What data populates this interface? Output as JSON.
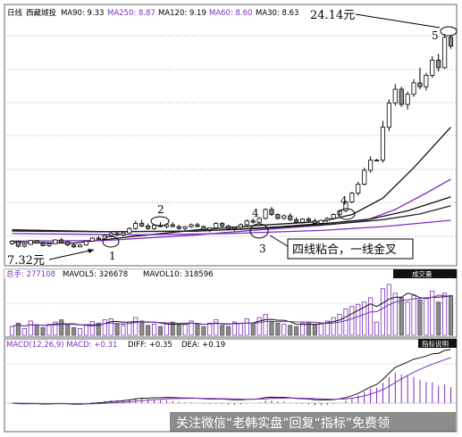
{
  "chart_data": [
    {
      "type": "candlestick",
      "panel": "price",
      "period_label": "日线",
      "stock_name": "西藏城投",
      "moving_averages": [
        {
          "label": "MA90",
          "value": "9.33",
          "color": "#000000"
        },
        {
          "label": "MA250",
          "value": "8.87",
          "color": "#7b2fbf"
        },
        {
          "label": "MA120",
          "value": "9.19",
          "color": "#000000"
        },
        {
          "label": "MA60",
          "value": "8.60",
          "color": "#7b2fbf"
        },
        {
          "label": "MA30",
          "value": "8.63",
          "color": "#000000"
        }
      ],
      "price_range": [
        6.0,
        26.0
      ],
      "grid": true,
      "candles": [
        [
          7.6,
          7.9,
          7.5,
          7.8
        ],
        [
          7.8,
          7.85,
          7.3,
          7.4
        ],
        [
          7.4,
          7.6,
          7.3,
          7.55
        ],
        [
          7.55,
          7.9,
          7.5,
          7.85
        ],
        [
          7.85,
          7.9,
          7.6,
          7.65
        ],
        [
          7.65,
          7.75,
          7.4,
          7.45
        ],
        [
          7.45,
          7.7,
          7.35,
          7.6
        ],
        [
          7.6,
          7.95,
          7.55,
          7.9
        ],
        [
          7.9,
          8.05,
          7.7,
          7.75
        ],
        [
          7.75,
          7.8,
          7.4,
          7.5
        ],
        [
          7.5,
          7.6,
          7.25,
          7.35
        ],
        [
          7.35,
          7.55,
          7.32,
          7.5
        ],
        [
          7.5,
          7.85,
          7.45,
          7.8
        ],
        [
          7.8,
          8.1,
          7.75,
          8.05
        ],
        [
          8.05,
          8.2,
          7.9,
          7.95
        ],
        [
          7.95,
          8.3,
          7.9,
          8.25
        ],
        [
          8.25,
          8.5,
          8.1,
          8.4
        ],
        [
          8.4,
          8.6,
          8.2,
          8.3
        ],
        [
          8.3,
          8.5,
          8.2,
          8.45
        ],
        [
          8.45,
          8.9,
          8.4,
          8.8
        ],
        [
          8.8,
          9.4,
          8.7,
          9.2
        ],
        [
          9.2,
          9.5,
          8.9,
          9.0
        ],
        [
          9.0,
          9.2,
          8.7,
          8.8
        ],
        [
          8.8,
          9.1,
          8.7,
          9.05
        ],
        [
          9.05,
          9.3,
          8.9,
          8.95
        ],
        [
          8.95,
          9.2,
          8.8,
          9.1
        ],
        [
          9.1,
          9.3,
          8.9,
          8.95
        ],
        [
          8.95,
          9.1,
          8.7,
          8.8
        ],
        [
          8.8,
          9.0,
          8.6,
          8.95
        ],
        [
          8.95,
          9.2,
          8.85,
          9.1
        ],
        [
          9.1,
          9.25,
          8.9,
          8.95
        ],
        [
          8.95,
          9.05,
          8.6,
          8.7
        ],
        [
          8.7,
          8.9,
          8.5,
          8.85
        ],
        [
          8.85,
          9.3,
          8.8,
          9.2
        ],
        [
          9.2,
          9.3,
          8.9,
          9.0
        ],
        [
          9.0,
          9.1,
          8.7,
          8.8
        ],
        [
          8.8,
          8.95,
          8.6,
          8.9
        ],
        [
          8.9,
          9.2,
          8.85,
          9.1
        ],
        [
          9.1,
          9.5,
          9.0,
          9.4
        ],
        [
          9.4,
          9.6,
          9.2,
          9.3
        ],
        [
          9.3,
          9.7,
          9.2,
          9.6
        ],
        [
          9.6,
          10.4,
          9.5,
          10.3
        ],
        [
          10.3,
          10.5,
          9.8,
          9.9
        ],
        [
          9.9,
          10.0,
          9.5,
          9.6
        ],
        [
          9.6,
          9.9,
          9.5,
          9.8
        ],
        [
          9.8,
          10.0,
          9.4,
          9.5
        ],
        [
          9.5,
          9.7,
          9.2,
          9.3
        ],
        [
          9.3,
          9.6,
          9.2,
          9.55
        ],
        [
          9.55,
          9.7,
          9.3,
          9.4
        ],
        [
          9.4,
          9.6,
          9.1,
          9.2
        ],
        [
          9.2,
          9.5,
          9.1,
          9.45
        ],
        [
          9.45,
          9.7,
          9.3,
          9.6
        ],
        [
          9.6,
          10.0,
          9.5,
          9.9
        ],
        [
          9.9,
          10.3,
          9.8,
          10.2
        ],
        [
          10.2,
          11.0,
          10.1,
          10.9
        ],
        [
          10.9,
          11.7,
          10.8,
          11.6
        ],
        [
          11.6,
          12.5,
          11.4,
          12.3
        ],
        [
          12.3,
          13.6,
          12.2,
          13.4
        ],
        [
          13.4,
          14.5,
          13.2,
          14.2
        ],
        [
          14.2,
          14.3,
          14.1,
          14.2
        ],
        [
          14.2,
          17.3,
          14.0,
          16.8
        ],
        [
          16.8,
          19.0,
          16.5,
          18.7
        ],
        [
          18.7,
          20.2,
          18.5,
          19.8
        ],
        [
          19.8,
          20.0,
          18.4,
          18.6
        ],
        [
          18.6,
          19.6,
          18.2,
          19.4
        ],
        [
          19.4,
          20.6,
          19.2,
          20.3
        ],
        [
          20.3,
          21.5,
          19.8,
          20.0
        ],
        [
          20.0,
          21.1,
          19.7,
          20.9
        ],
        [
          20.9,
          22.4,
          20.7,
          22.1
        ],
        [
          22.1,
          22.6,
          21.2,
          21.5
        ],
        [
          21.5,
          24.14,
          21.4,
          23.9
        ],
        [
          23.9,
          24.1,
          23.0,
          23.2
        ]
      ],
      "ma_lines": [
        {
          "name": "MA30",
          "color": "#111111",
          "values": [
            [
              0,
              7.7
            ],
            [
              10,
              7.65
            ],
            [
              20,
              8.2
            ],
            [
              30,
              8.7
            ],
            [
              40,
              9.05
            ],
            [
              50,
              9.35
            ],
            [
              55,
              9.9
            ],
            [
              60,
              11.2
            ],
            [
              65,
              13.6
            ],
            [
              71,
              16.8
            ]
          ]
        },
        {
          "name": "MA60",
          "color": "#7b2fbf",
          "values": [
            [
              0,
              7.8
            ],
            [
              15,
              7.85
            ],
            [
              30,
              8.3
            ],
            [
              40,
              8.7
            ],
            [
              50,
              9.05
            ],
            [
              57,
              9.4
            ],
            [
              62,
              10.3
            ],
            [
              67,
              11.6
            ],
            [
              71,
              12.7
            ]
          ]
        },
        {
          "name": "MA90",
          "color": "#111111",
          "values": [
            [
              0,
              8.7
            ],
            [
              15,
              8.55
            ],
            [
              30,
              8.6
            ],
            [
              42,
              8.9
            ],
            [
              52,
              9.25
            ],
            [
              58,
              9.55
            ],
            [
              64,
              10.2
            ],
            [
              71,
              11.3
            ]
          ]
        },
        {
          "name": "MA120",
          "color": "#222222",
          "values": [
            [
              0,
              8.6
            ],
            [
              15,
              8.55
            ],
            [
              30,
              8.6
            ],
            [
              42,
              8.85
            ],
            [
              52,
              9.15
            ],
            [
              60,
              9.5
            ],
            [
              66,
              9.95
            ],
            [
              71,
              10.6
            ]
          ]
        },
        {
          "name": "MA250",
          "color": "#7b2fbf",
          "values": [
            [
              0,
              8.4
            ],
            [
              20,
              8.3
            ],
            [
              35,
              8.4
            ],
            [
              50,
              8.65
            ],
            [
              60,
              8.95
            ],
            [
              71,
              9.45
            ]
          ]
        }
      ],
      "annotations": [
        {
          "text": "7.32元",
          "type": "price_label"
        },
        {
          "text": "24.14元",
          "type": "price_label"
        },
        {
          "text": "1",
          "type": "marker"
        },
        {
          "text": "2",
          "type": "marker"
        },
        {
          "text": "3",
          "type": "marker"
        },
        {
          "text": "4",
          "type": "marker"
        },
        {
          "text": "4",
          "type": "marker"
        },
        {
          "text": "5",
          "type": "marker"
        },
        {
          "text": "四线粘合，一线金叉",
          "type": "callout"
        }
      ]
    },
    {
      "type": "bar",
      "panel": "volume",
      "tab_label": "成交量",
      "header": {
        "total_label": "总手: 277108",
        "ma5_label": "MAVOL5: 326678",
        "ma10_label": "MAVOL10: 318596"
      },
      "values": [
        40,
        55,
        30,
        65,
        45,
        35,
        50,
        60,
        70,
        45,
        35,
        30,
        48,
        62,
        55,
        70,
        75,
        50,
        45,
        60,
        80,
        65,
        45,
        50,
        40,
        55,
        60,
        45,
        50,
        65,
        50,
        40,
        55,
        70,
        45,
        40,
        60,
        55,
        75,
        50,
        80,
        95,
        60,
        55,
        50,
        45,
        40,
        55,
        60,
        50,
        55,
        65,
        80,
        95,
        120,
        130,
        140,
        150,
        170,
        60,
        210,
        230,
        190,
        170,
        150,
        180,
        160,
        170,
        200,
        150,
        190,
        180
      ],
      "ma_lines": [
        {
          "name": "MAVOL5",
          "color": "#111111"
        },
        {
          "name": "MAVOL10",
          "color": "#7b2fbf"
        }
      ]
    },
    {
      "type": "line",
      "panel": "macd",
      "tab_label": "指标说明",
      "header": {
        "macd_label": "MACD(12,26,9) MACD: +0.31",
        "diff_label": "DIFF: +0.35",
        "dea_label": "DEA: +0.19"
      },
      "series": [
        {
          "name": "DIFF",
          "color": "#111111"
        },
        {
          "name": "DEA",
          "color": "#7b2fbf"
        }
      ]
    }
  ],
  "watermark_text": "关注微信“老韩实盘”回复“指标”免费领"
}
